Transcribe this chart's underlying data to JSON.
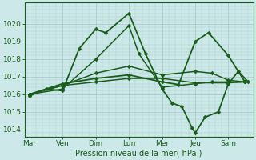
{
  "background_color": "#cce8e8",
  "grid_color": "#aacccc",
  "line_color": "#1a5c1a",
  "marker_color": "#1a5c1a",
  "xlabel": "Pression niveau de la mer( hPa )",
  "xlabel_color": "#1a5c1a",
  "xtick_labels": [
    "Mar",
    "Ven",
    "Dim",
    "Lun",
    "Mer",
    "Jeu",
    "Sam"
  ],
  "xtick_positions": [
    0,
    1,
    2,
    3,
    4,
    5,
    6
  ],
  "ylim": [
    1013.6,
    1021.2
  ],
  "yticks": [
    1014,
    1015,
    1016,
    1017,
    1018,
    1019,
    1020
  ],
  "series": [
    {
      "x": [
        0.0,
        0.5,
        1.0,
        1.5,
        2.0,
        2.3,
        3.0,
        3.5,
        4.0,
        4.3,
        4.6,
        4.9,
        5.0,
        5.3,
        5.7,
        6.0,
        6.3,
        6.6
      ],
      "y": [
        1015.9,
        1016.3,
        1016.2,
        1018.6,
        1019.7,
        1019.5,
        1020.6,
        1018.3,
        1016.3,
        1015.5,
        1015.3,
        1014.1,
        1013.8,
        1014.7,
        1015.0,
        1016.6,
        1017.3,
        1016.7
      ],
      "lw": 1.3,
      "ms": 2.5
    },
    {
      "x": [
        0.0,
        1.0,
        2.0,
        3.0,
        3.3,
        4.0,
        5.0,
        5.5,
        6.0,
        6.5
      ],
      "y": [
        1016.0,
        1016.3,
        1018.0,
        1019.9,
        1018.3,
        1016.4,
        1016.6,
        1016.7,
        1016.7,
        1016.7
      ],
      "lw": 1.1,
      "ms": 2.5
    },
    {
      "x": [
        0.0,
        1.0,
        2.0,
        3.0,
        4.0,
        5.0,
        5.5,
        6.0,
        6.5
      ],
      "y": [
        1016.0,
        1016.5,
        1017.2,
        1017.6,
        1017.1,
        1017.3,
        1017.2,
        1016.8,
        1016.7
      ],
      "lw": 1.1,
      "ms": 2.5
    },
    {
      "x": [
        0.0,
        1.0,
        2.0,
        3.0,
        4.0,
        5.0,
        6.0,
        6.5
      ],
      "y": [
        1016.0,
        1016.5,
        1016.7,
        1016.9,
        1016.9,
        1016.65,
        1016.65,
        1016.7
      ],
      "lw": 1.1,
      "ms": 2.5
    },
    {
      "x": [
        0.0,
        1.0,
        2.0,
        3.0,
        4.0,
        4.5,
        5.0,
        5.4,
        6.0,
        6.5
      ],
      "y": [
        1016.0,
        1016.6,
        1016.9,
        1017.1,
        1016.7,
        1016.55,
        1019.0,
        1019.5,
        1018.2,
        1016.7
      ],
      "lw": 1.3,
      "ms": 2.5
    }
  ]
}
